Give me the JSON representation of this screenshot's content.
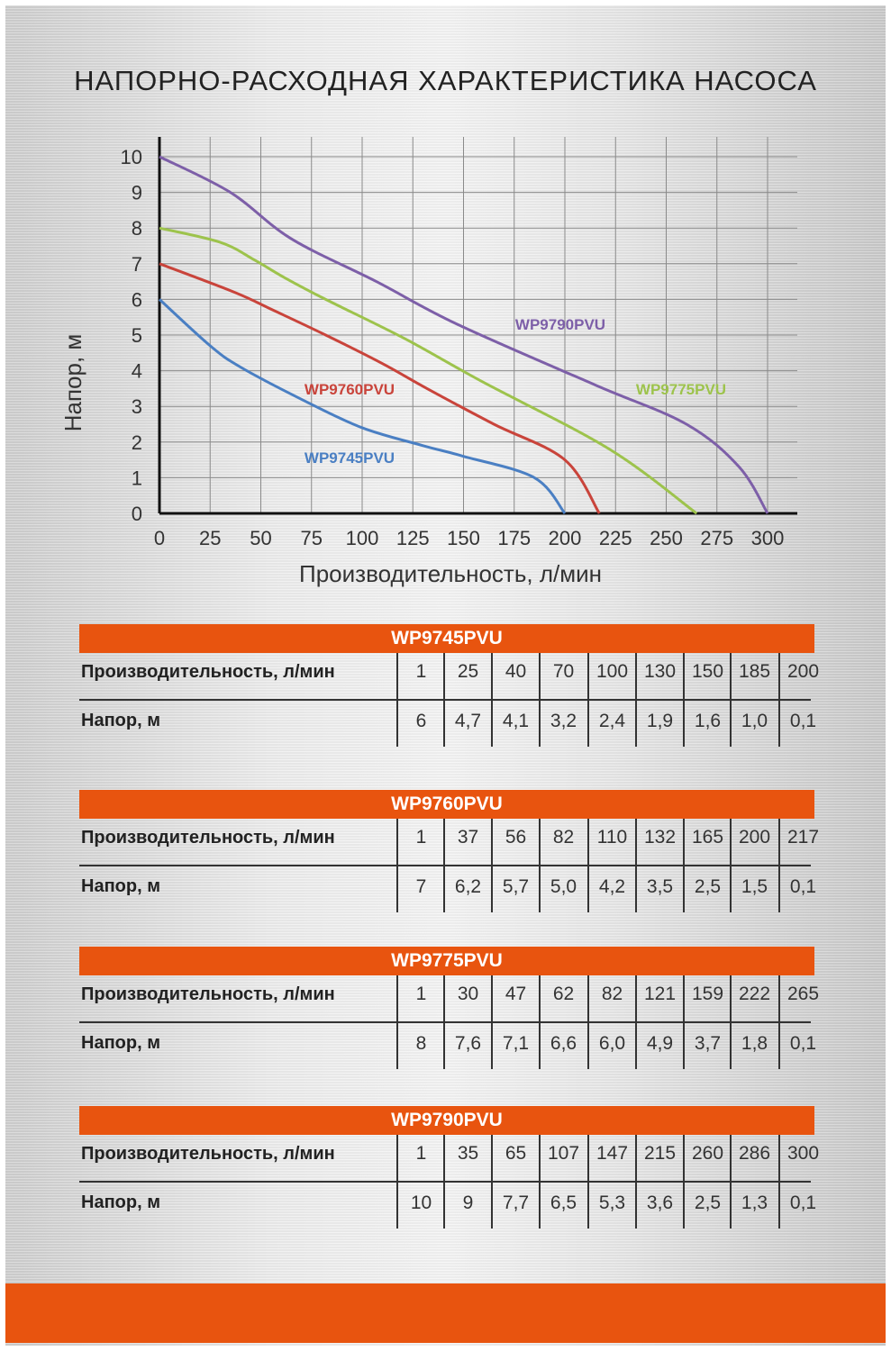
{
  "title": "НАПОРНО-РАСХОДНАЯ ХАРАКТЕРИСТИКА НАСОСА",
  "chart_data": {
    "type": "line",
    "title": "НАПОРНО-РАСХОДНАЯ ХАРАКТЕРИСТИКА НАСОСА",
    "xlabel": "Производительность, л/мин",
    "ylabel": "Напор, м",
    "xlim": [
      0,
      300
    ],
    "ylim": [
      0,
      10
    ],
    "xticks": [
      "0",
      "25",
      "50",
      "75",
      "100",
      "125",
      "150",
      "175",
      "200",
      "225",
      "250",
      "275",
      "300"
    ],
    "yticks": [
      "0",
      "1",
      "2",
      "3",
      "4",
      "5",
      "6",
      "7",
      "8",
      "9",
      "10"
    ],
    "grid": true,
    "series": [
      {
        "name": "WP9745PVU",
        "color": "#4a7fc3",
        "x": [
          0,
          25,
          40,
          70,
          100,
          130,
          150,
          185,
          200
        ],
        "y": [
          6,
          4.7,
          4.1,
          3.2,
          2.4,
          1.9,
          1.6,
          1.0,
          0
        ]
      },
      {
        "name": "WP9760PVU",
        "color": "#c9443b",
        "x": [
          0,
          37,
          56,
          82,
          110,
          132,
          165,
          200,
          217
        ],
        "y": [
          7,
          6.2,
          5.7,
          5.0,
          4.2,
          3.5,
          2.5,
          1.5,
          0
        ]
      },
      {
        "name": "WP9775PVU",
        "color": "#9dc34c",
        "x": [
          0,
          30,
          47,
          62,
          82,
          121,
          159,
          222,
          265
        ],
        "y": [
          8,
          7.6,
          7.1,
          6.6,
          6.0,
          4.9,
          3.7,
          1.8,
          0
        ]
      },
      {
        "name": "WP9790PVU",
        "color": "#7d5fa8",
        "x": [
          0,
          35,
          65,
          107,
          147,
          215,
          260,
          286,
          300
        ],
        "y": [
          10,
          9,
          7.7,
          6.5,
          5.3,
          3.6,
          2.5,
          1.3,
          0
        ]
      }
    ]
  },
  "tables": [
    {
      "model": "WP9745PVU",
      "flow_label": "Производительность, л/мин",
      "head_label": "Напор, м",
      "flow": [
        "1",
        "25",
        "40",
        "70",
        "100",
        "130",
        "150",
        "185",
        "200"
      ],
      "head": [
        "6",
        "4,7",
        "4,1",
        "3,2",
        "2,4",
        "1,9",
        "1,6",
        "1,0",
        "0,1"
      ]
    },
    {
      "model": "WP9760PVU",
      "flow_label": "Производительность, л/мин",
      "head_label": "Напор, м",
      "flow": [
        "1",
        "37",
        "56",
        "82",
        "110",
        "132",
        "165",
        "200",
        "217"
      ],
      "head": [
        "7",
        "6,2",
        "5,7",
        "5,0",
        "4,2",
        "3,5",
        "2,5",
        "1,5",
        "0,1"
      ]
    },
    {
      "model": "WP9775PVU",
      "flow_label": "Производительность, л/мин",
      "head_label": "Напор, м",
      "flow": [
        "1",
        "30",
        "47",
        "62",
        "82",
        "121",
        "159",
        "222",
        "265"
      ],
      "head": [
        "8",
        "7,6",
        "7,1",
        "6,6",
        "6,0",
        "4,9",
        "3,7",
        "1,8",
        "0,1"
      ]
    },
    {
      "model": "WP9790PVU",
      "flow_label": "Производительность, л/мин",
      "head_label": "Напор, м",
      "flow": [
        "1",
        "35",
        "65",
        "107",
        "147",
        "215",
        "260",
        "286",
        "300"
      ],
      "head": [
        "10",
        "9",
        "7,7",
        "6,5",
        "5,3",
        "3,6",
        "2,5",
        "1,3",
        "0,1"
      ]
    }
  ],
  "colors": {
    "accent": "#e8540f"
  }
}
